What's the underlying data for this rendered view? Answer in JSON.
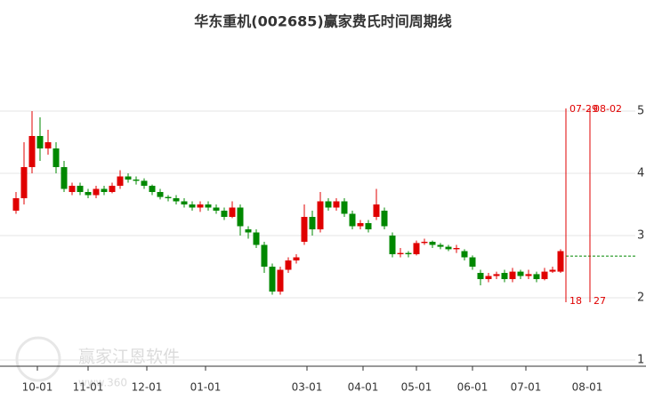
{
  "chart_data": {
    "type": "candlestick",
    "title": "华东重机(002685)赢家费氏时间周期线",
    "x": [
      0,
      3,
      6,
      9,
      12,
      15,
      18,
      21,
      24,
      27,
      30,
      33,
      36,
      39,
      42,
      45,
      48,
      51,
      54,
      57,
      60,
      63,
      66,
      69,
      72,
      75,
      78,
      81,
      84,
      87,
      90,
      93,
      96,
      99,
      102,
      105,
      108,
      111,
      114,
      117,
      120,
      123,
      126,
      129,
      132,
      135,
      138,
      141,
      144,
      147,
      150,
      153,
      156,
      159,
      162,
      165,
      168,
      171,
      174,
      177,
      180,
      183,
      186,
      189,
      192,
      195,
      198,
      201,
      204
    ],
    "open": [
      3.4,
      3.6,
      4.1,
      4.6,
      4.4,
      4.4,
      4.1,
      3.7,
      3.8,
      3.7,
      3.65,
      3.75,
      3.7,
      3.8,
      3.95,
      3.9,
      3.88,
      3.8,
      3.7,
      3.62,
      3.6,
      3.55,
      3.5,
      3.45,
      3.5,
      3.45,
      3.4,
      3.3,
      3.45,
      3.1,
      3.05,
      2.85,
      2.5,
      2.1,
      2.45,
      2.6,
      2.9,
      3.3,
      3.1,
      3.55,
      3.45,
      3.55,
      3.35,
      3.15,
      3.2,
      3.3,
      3.4,
      3.0,
      2.7,
      2.72,
      2.7,
      2.88,
      2.9,
      2.85,
      2.82,
      2.78,
      2.75,
      2.65,
      2.4,
      2.3,
      2.35,
      2.4,
      2.3,
      2.42,
      2.35,
      2.38,
      2.3,
      2.42,
      2.42
    ],
    "close": [
      3.6,
      4.1,
      4.6,
      4.4,
      4.5,
      4.1,
      3.75,
      3.8,
      3.7,
      3.65,
      3.75,
      3.7,
      3.8,
      3.95,
      3.9,
      3.88,
      3.8,
      3.7,
      3.62,
      3.6,
      3.55,
      3.5,
      3.45,
      3.5,
      3.45,
      3.4,
      3.3,
      3.45,
      3.15,
      3.05,
      2.85,
      2.5,
      2.1,
      2.45,
      2.6,
      2.65,
      3.3,
      3.1,
      3.55,
      3.45,
      3.55,
      3.35,
      3.15,
      3.2,
      3.1,
      3.5,
      3.15,
      2.7,
      2.72,
      2.7,
      2.88,
      2.9,
      2.85,
      2.82,
      2.78,
      2.8,
      2.65,
      2.5,
      2.3,
      2.35,
      2.38,
      2.3,
      2.42,
      2.35,
      2.38,
      2.3,
      2.42,
      2.45,
      2.75
    ],
    "high": [
      3.7,
      4.5,
      5.0,
      4.9,
      4.7,
      4.5,
      4.2,
      3.85,
      3.85,
      3.75,
      3.8,
      3.8,
      3.85,
      4.05,
      4.0,
      3.95,
      3.92,
      3.82,
      3.75,
      3.65,
      3.65,
      3.6,
      3.55,
      3.55,
      3.55,
      3.5,
      3.45,
      3.55,
      3.5,
      3.15,
      3.1,
      2.9,
      2.55,
      2.5,
      2.65,
      2.7,
      3.5,
      3.4,
      3.7,
      3.6,
      3.6,
      3.6,
      3.4,
      3.25,
      3.25,
      3.75,
      3.45,
      3.05,
      2.8,
      2.75,
      2.92,
      2.95,
      2.92,
      2.88,
      2.85,
      2.85,
      2.78,
      2.68,
      2.45,
      2.4,
      2.42,
      2.45,
      2.48,
      2.45,
      2.45,
      2.42,
      2.48,
      2.5,
      2.78
    ],
    "low": [
      3.35,
      3.5,
      4.0,
      4.2,
      4.3,
      4.0,
      3.7,
      3.65,
      3.65,
      3.6,
      3.6,
      3.65,
      3.68,
      3.75,
      3.85,
      3.82,
      3.75,
      3.65,
      3.58,
      3.55,
      3.5,
      3.45,
      3.4,
      3.38,
      3.4,
      3.35,
      3.25,
      3.28,
      3.0,
      2.95,
      2.8,
      2.4,
      2.05,
      2.05,
      2.4,
      2.55,
      2.85,
      3.0,
      3.05,
      3.4,
      3.4,
      3.3,
      3.1,
      3.1,
      3.05,
      3.25,
      3.1,
      2.65,
      2.65,
      2.65,
      2.68,
      2.85,
      2.8,
      2.78,
      2.75,
      2.72,
      2.6,
      2.45,
      2.2,
      2.25,
      2.3,
      2.25,
      2.25,
      2.3,
      2.3,
      2.25,
      2.28,
      2.4,
      2.4
    ],
    "up_color": "#e00000",
    "down_color": "#008800",
    "xlim": [
      -6,
      232
    ],
    "ylim": [
      0.9,
      6
    ],
    "xticks": [
      {
        "value": 8,
        "label": "10-01"
      },
      {
        "value": 27,
        "label": "11-01"
      },
      {
        "value": 49,
        "label": "12-01"
      },
      {
        "value": 71,
        "label": "01-01"
      },
      {
        "value": 109,
        "label": "03-01"
      },
      {
        "value": 130,
        "label": "04-01"
      },
      {
        "value": 150,
        "label": "05-01"
      },
      {
        "value": 171,
        "label": "06-01"
      },
      {
        "value": 191,
        "label": "07-01"
      },
      {
        "value": 214,
        "label": "08-01"
      }
    ],
    "yticks": [
      1,
      2,
      3,
      4,
      5
    ],
    "grid": true,
    "cycle_lines": [
      {
        "x": 206,
        "label": "07-29",
        "count": 18
      },
      {
        "x": 215,
        "label": "08-02",
        "count": 27
      }
    ],
    "cycle_color": "#e00000",
    "level": 2.67,
    "level_color": "#008800",
    "watermark": {
      "name": "赢家江恩软件",
      "url": "www.360"
    }
  }
}
